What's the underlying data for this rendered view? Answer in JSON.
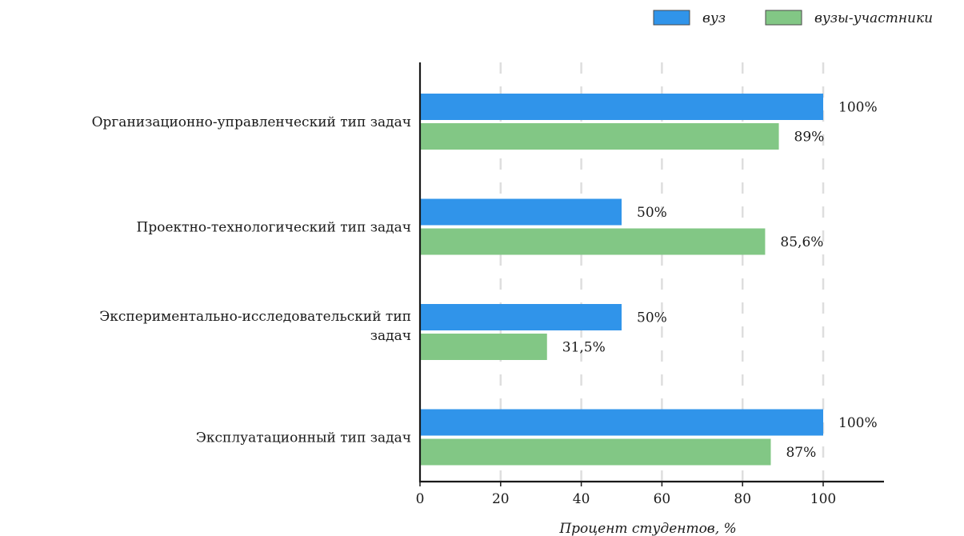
{
  "chart_data": {
    "type": "bar",
    "orientation": "horizontal",
    "categories": [
      [
        "Организационно-управленческий тип задач"
      ],
      [
        "Проектно-технологический тип задач"
      ],
      [
        "Экспериментально-исследовательский тип",
        "задач"
      ],
      [
        "Эксплуатационный тип задач"
      ]
    ],
    "series": [
      {
        "name": "вуз",
        "color": "#3094ea",
        "values": [
          100,
          50,
          50,
          100
        ],
        "labels": [
          "100%",
          "50%",
          "50%",
          "100%"
        ]
      },
      {
        "name": "вузы-участники",
        "color": "#82c785",
        "values": [
          89,
          85.6,
          31.5,
          87
        ],
        "labels": [
          "89%",
          "85,6%",
          "31,5%",
          "87%"
        ]
      }
    ],
    "xlabel": "Процент студентов, %",
    "ylabel": "",
    "xlim": [
      0,
      115
    ],
    "xticks": [
      0,
      20,
      40,
      60,
      80,
      100
    ],
    "grid": "vertical dashed",
    "legend_position": "top-right"
  }
}
